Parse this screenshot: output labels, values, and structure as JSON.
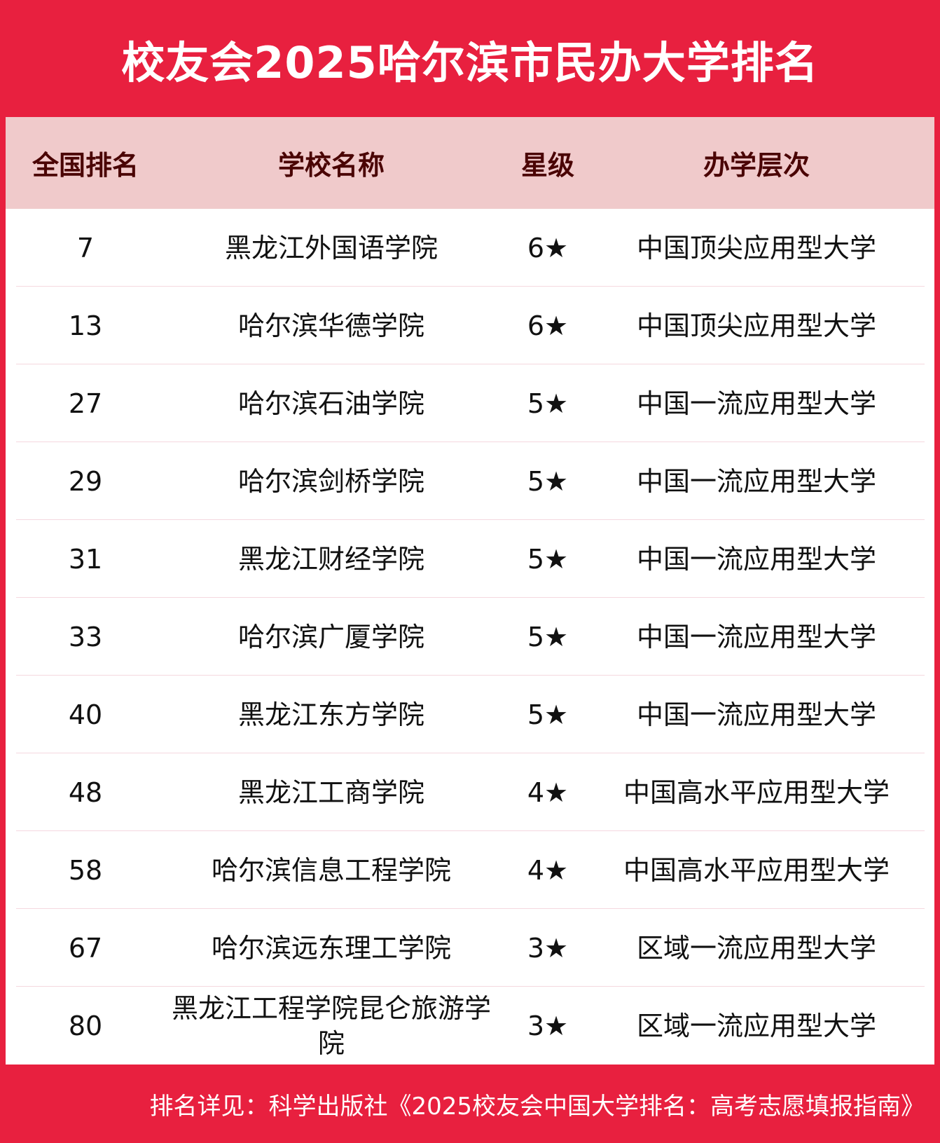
{
  "title": "校友会2025哈尔滨市民办大学排名",
  "headers": [
    "全国排名",
    "学校名称",
    "星级",
    "办学层次"
  ],
  "rows": [
    {
      "rank": "7",
      "name": "黑龙江外国语学院",
      "stars": "6★",
      "level": "中国顶尖应用型大学"
    },
    {
      "rank": "13",
      "name": "哈尔滨华德学院",
      "stars": "6★",
      "level": "中国顶尖应用型大学"
    },
    {
      "rank": "27",
      "name": "哈尔滨石油学院",
      "stars": "5★",
      "level": "中国一流应用型大学"
    },
    {
      "rank": "29",
      "name": "哈尔滨剑桥学院",
      "stars": "5★",
      "level": "中国一流应用型大学"
    },
    {
      "rank": "31",
      "name": "黑龙江财经学院",
      "stars": "5★",
      "level": "中国一流应用型大学"
    },
    {
      "rank": "33",
      "name": "哈尔滨广厦学院",
      "stars": "5★",
      "level": "中国一流应用型大学"
    },
    {
      "rank": "40",
      "name": "黑龙江东方学院",
      "stars": "5★",
      "level": "中国一流应用型大学"
    },
    {
      "rank": "48",
      "name": "黑龙江工商学院",
      "stars": "4★",
      "level": "中国高水平应用型大学"
    },
    {
      "rank": "58",
      "name": "哈尔滨信息工程学院",
      "stars": "4★",
      "level": "中国高水平应用型大学"
    },
    {
      "rank": "67",
      "name": "哈尔滨远东理工学院",
      "stars": "3★",
      "level": "区域一流应用型大学"
    },
    {
      "rank": "80",
      "name": "黑龙江工程学院昆仑旅游学院",
      "stars": "3★",
      "level": "区域一流应用型大学"
    }
  ],
  "footer": "排名详见：科学出版社《2025校友会中国大学排名：高考志愿填报指南》",
  "colors": {
    "brand_red": "#e8203f",
    "header_bg": "#f0cacb",
    "header_text": "#4a0404"
  }
}
